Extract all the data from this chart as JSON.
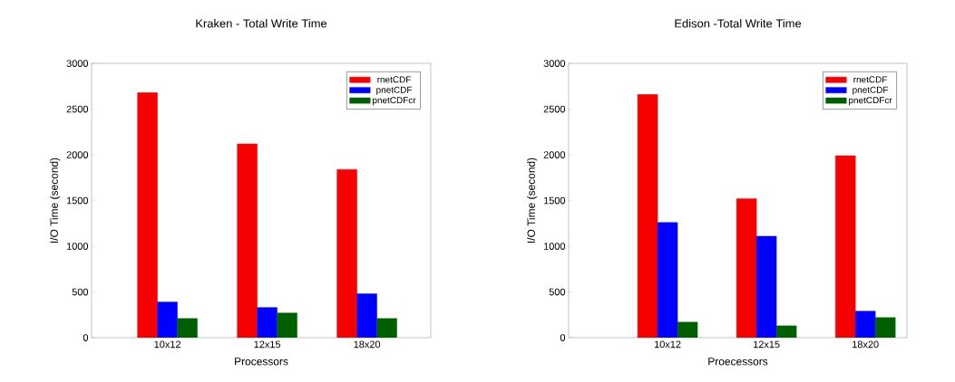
{
  "chart_data": [
    {
      "type": "bar",
      "title": "Kraken - Total Write Time",
      "xlabel": "Processors",
      "ylabel": "I/O Time (second)",
      "categories": [
        "10x12",
        "12x15",
        "18x20"
      ],
      "series": [
        {
          "name": "rnetCDF",
          "color": "#f70000",
          "values": [
            2680,
            2120,
            1840
          ]
        },
        {
          "name": "pnetCDF",
          "color": "#0000ff",
          "values": [
            390,
            330,
            480
          ]
        },
        {
          "name": "pnetCDFcr",
          "color": "#006000",
          "values": [
            210,
            270,
            210
          ]
        }
      ],
      "ylim": [
        0,
        3000
      ],
      "yticks": [
        0,
        500,
        1000,
        1500,
        2000,
        2500,
        3000
      ],
      "legend": "top right"
    },
    {
      "type": "bar",
      "title": "Edison -Total Write Time",
      "xlabel": "Proecessors",
      "ylabel": "I/O Time (second)",
      "categories": [
        "10x12",
        "12x15",
        "18x20"
      ],
      "series": [
        {
          "name": "rnetCDF",
          "color": "#f70000",
          "values": [
            2660,
            1520,
            1990
          ]
        },
        {
          "name": "pnetCDF",
          "color": "#0000ff",
          "values": [
            1260,
            1110,
            290
          ]
        },
        {
          "name": "pnetCDFcr",
          "color": "#006000",
          "values": [
            170,
            130,
            220
          ]
        }
      ],
      "ylim": [
        0,
        3000
      ],
      "yticks": [
        0,
        500,
        1000,
        1500,
        2000,
        2500,
        3000
      ],
      "legend": "top right"
    }
  ]
}
